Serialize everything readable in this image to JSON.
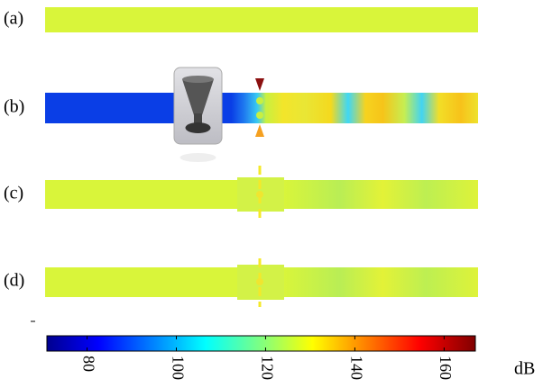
{
  "panels": [
    {
      "label": "(a)"
    },
    {
      "label": "(b)"
    },
    {
      "label": "(c)"
    },
    {
      "label": "(d)"
    }
  ],
  "colorbar": {
    "range": [
      71,
      167
    ],
    "ticks": [
      80,
      100,
      120,
      140,
      160
    ],
    "unit": "dB"
  }
}
